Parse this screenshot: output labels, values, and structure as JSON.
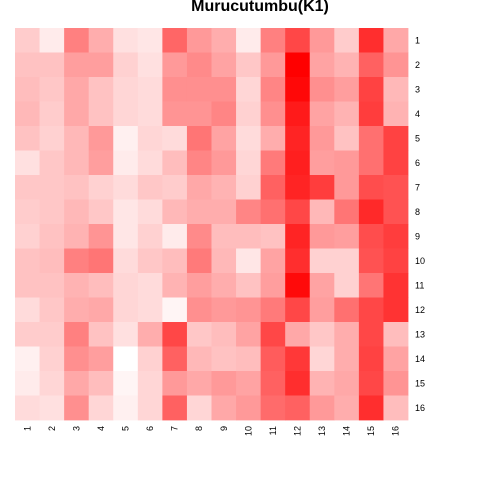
{
  "chart_data": {
    "type": "heatmap",
    "title": "Murucutumbu(K1)",
    "xlabel": "",
    "ylabel": "",
    "x_labels": [
      "1",
      "2",
      "3",
      "4",
      "5",
      "6",
      "7",
      "8",
      "9",
      "10",
      "11",
      "12",
      "13",
      "14",
      "15",
      "16"
    ],
    "y_labels": [
      "1",
      "2",
      "3",
      "4",
      "5",
      "6",
      "7",
      "8",
      "9",
      "10",
      "11",
      "12",
      "13",
      "14",
      "15",
      "16"
    ],
    "color_low": "#ffffff",
    "color_high": "#ff0000",
    "value_range": [
      0,
      1
    ],
    "values": [
      [
        0.2,
        0.08,
        0.5,
        0.32,
        0.12,
        0.1,
        0.6,
        0.4,
        0.32,
        0.08,
        0.5,
        0.72,
        0.4,
        0.2,
        0.82,
        0.34
      ],
      [
        0.24,
        0.24,
        0.38,
        0.38,
        0.18,
        0.12,
        0.4,
        0.46,
        0.36,
        0.22,
        0.4,
        1.0,
        0.36,
        0.3,
        0.62,
        0.42
      ],
      [
        0.26,
        0.22,
        0.34,
        0.24,
        0.16,
        0.14,
        0.44,
        0.44,
        0.44,
        0.16,
        0.48,
        0.97,
        0.44,
        0.38,
        0.74,
        0.28
      ],
      [
        0.28,
        0.2,
        0.34,
        0.24,
        0.16,
        0.14,
        0.42,
        0.42,
        0.48,
        0.18,
        0.44,
        0.9,
        0.36,
        0.3,
        0.76,
        0.3
      ],
      [
        0.24,
        0.18,
        0.28,
        0.4,
        0.06,
        0.16,
        0.14,
        0.54,
        0.36,
        0.14,
        0.32,
        0.86,
        0.4,
        0.24,
        0.56,
        0.74
      ],
      [
        0.12,
        0.22,
        0.28,
        0.38,
        0.08,
        0.14,
        0.26,
        0.48,
        0.4,
        0.16,
        0.52,
        0.88,
        0.38,
        0.4,
        0.56,
        0.74
      ],
      [
        0.22,
        0.22,
        0.24,
        0.18,
        0.14,
        0.22,
        0.2,
        0.34,
        0.3,
        0.18,
        0.62,
        0.86,
        0.76,
        0.4,
        0.7,
        0.68
      ],
      [
        0.2,
        0.22,
        0.28,
        0.22,
        0.1,
        0.14,
        0.28,
        0.32,
        0.32,
        0.48,
        0.56,
        0.72,
        0.28,
        0.54,
        0.84,
        0.68
      ],
      [
        0.18,
        0.24,
        0.3,
        0.42,
        0.1,
        0.18,
        0.08,
        0.46,
        0.26,
        0.26,
        0.24,
        0.86,
        0.4,
        0.38,
        0.7,
        0.76
      ],
      [
        0.24,
        0.26,
        0.5,
        0.54,
        0.14,
        0.22,
        0.26,
        0.52,
        0.28,
        0.1,
        0.36,
        0.82,
        0.18,
        0.18,
        0.68,
        0.74
      ],
      [
        0.24,
        0.24,
        0.3,
        0.26,
        0.16,
        0.14,
        0.3,
        0.38,
        0.32,
        0.24,
        0.38,
        0.96,
        0.36,
        0.18,
        0.54,
        0.8
      ],
      [
        0.14,
        0.22,
        0.32,
        0.34,
        0.16,
        0.14,
        0.04,
        0.44,
        0.4,
        0.42,
        0.52,
        0.72,
        0.38,
        0.56,
        0.72,
        0.8
      ],
      [
        0.2,
        0.2,
        0.5,
        0.24,
        0.12,
        0.32,
        0.72,
        0.22,
        0.26,
        0.36,
        0.72,
        0.34,
        0.22,
        0.32,
        0.72,
        0.26
      ],
      [
        0.06,
        0.18,
        0.44,
        0.38,
        0.0,
        0.18,
        0.62,
        0.28,
        0.24,
        0.26,
        0.64,
        0.78,
        0.16,
        0.32,
        0.74,
        0.36
      ],
      [
        0.08,
        0.16,
        0.34,
        0.26,
        0.04,
        0.16,
        0.4,
        0.34,
        0.4,
        0.36,
        0.62,
        0.82,
        0.3,
        0.34,
        0.72,
        0.42
      ],
      [
        0.14,
        0.12,
        0.44,
        0.16,
        0.06,
        0.16,
        0.62,
        0.16,
        0.34,
        0.4,
        0.58,
        0.62,
        0.4,
        0.32,
        0.82,
        0.26
      ]
    ]
  }
}
